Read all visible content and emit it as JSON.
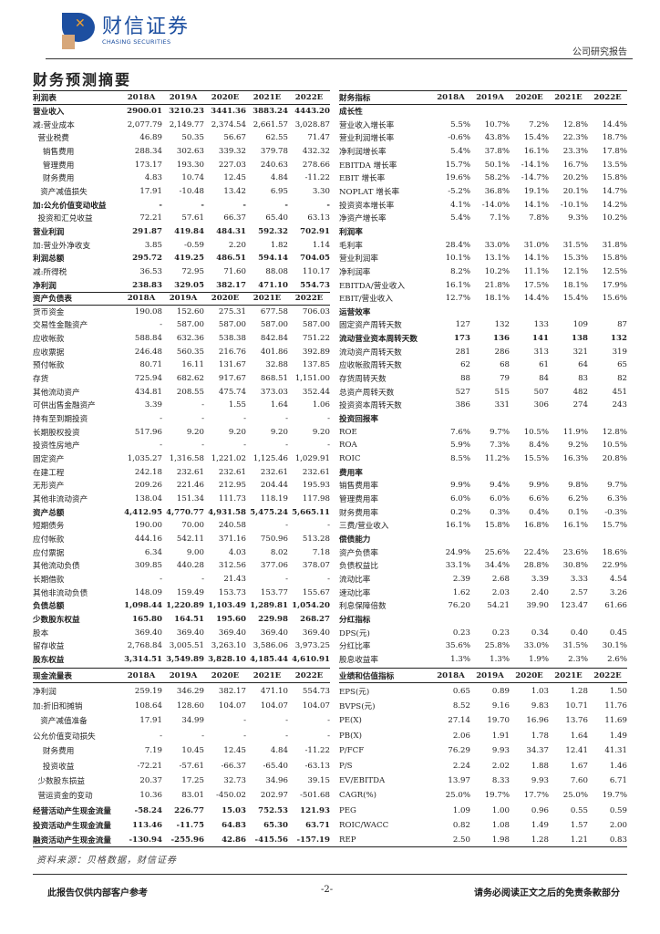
{
  "header": {
    "logo_cn": "财信证券",
    "logo_en": "CHASING SECURITIES",
    "report_type": "公司研究报告",
    "page_title": "财务预测摘要"
  },
  "years": [
    "2018A",
    "2019A",
    "2020E",
    "2021E",
    "2022E"
  ],
  "left_table": [
    {
      "type": "hd",
      "label": "利润表"
    },
    {
      "label": "营业收入",
      "b": true,
      "v": [
        "2900.01",
        "3210.23",
        "3441.36",
        "3883.24",
        "4443.20"
      ]
    },
    {
      "label": "减:营业成本",
      "v": [
        "2,077.79",
        "2,149.77",
        "2,374.54",
        "2,661.57",
        "3,028.87"
      ]
    },
    {
      "label": "  营业税费",
      "v": [
        "46.89",
        "50.35",
        "56.67",
        "62.55",
        "71.47"
      ]
    },
    {
      "label": "    销售费用",
      "v": [
        "288.34",
        "302.63",
        "339.32",
        "379.78",
        "432.32"
      ]
    },
    {
      "label": "    管理费用",
      "v": [
        "173.17",
        "193.30",
        "227.03",
        "240.63",
        "278.66"
      ]
    },
    {
      "label": "    财务费用",
      "v": [
        "4.83",
        "10.74",
        "12.45",
        "4.84",
        "-11.22"
      ]
    },
    {
      "label": "   资产减值损失",
      "v": [
        "17.91",
        "-10.48",
        "13.42",
        "6.95",
        "3.30"
      ]
    },
    {
      "label": "加:公允价值变动收益",
      "b": true,
      "v": [
        "-",
        "-",
        "-",
        "-",
        "-"
      ]
    },
    {
      "label": "  投资和汇兑收益",
      "v": [
        "72.21",
        "57.61",
        "66.37",
        "65.40",
        "63.13"
      ]
    },
    {
      "label": "营业利润",
      "b": true,
      "v": [
        "291.87",
        "419.84",
        "484.31",
        "592.32",
        "702.91"
      ]
    },
    {
      "label": "加:营业外净收支",
      "v": [
        "3.85",
        "-0.59",
        "2.20",
        "1.82",
        "1.14"
      ]
    },
    {
      "label": "利润总额",
      "b": true,
      "v": [
        "295.72",
        "419.25",
        "486.51",
        "594.14",
        "704.05"
      ]
    },
    {
      "label": "减:所得税",
      "v": [
        "36.53",
        "72.95",
        "71.60",
        "88.08",
        "110.17"
      ]
    },
    {
      "label": "净利润",
      "b": true,
      "v": [
        "238.83",
        "329.05",
        "382.17",
        "471.10",
        "554.73"
      ]
    },
    {
      "type": "hd",
      "label": "资产负债表"
    },
    {
      "label": "货币资金",
      "v": [
        "190.08",
        "152.60",
        "275.31",
        "677.58",
        "706.03"
      ]
    },
    {
      "label": "交易性金融资产",
      "v": [
        "-",
        "587.00",
        "587.00",
        "587.00",
        "587.00"
      ]
    },
    {
      "label": "应收帐款",
      "v": [
        "588.84",
        "632.36",
        "538.38",
        "842.84",
        "751.22"
      ]
    },
    {
      "label": "应收票据",
      "v": [
        "246.48",
        "560.35",
        "216.76",
        "401.86",
        "392.89"
      ]
    },
    {
      "label": "预付帐款",
      "v": [
        "80.71",
        "16.11",
        "131.67",
        "32.88",
        "137.85"
      ]
    },
    {
      "label": "存货",
      "v": [
        "725.94",
        "682.62",
        "917.67",
        "868.51",
        "1,151.00"
      ]
    },
    {
      "label": "其他流动资产",
      "v": [
        "434.81",
        "208.55",
        "475.74",
        "373.03",
        "352.44"
      ]
    },
    {
      "label": "可供出售金融资产",
      "v": [
        "3.39",
        "-",
        "1.55",
        "1.64",
        "1.06"
      ]
    },
    {
      "label": "持有至到期投资",
      "v": [
        "-",
        "-",
        "-",
        "-",
        "-"
      ]
    },
    {
      "label": "长期股权投资",
      "v": [
        "517.96",
        "9.20",
        "9.20",
        "9.20",
        "9.20"
      ]
    },
    {
      "label": "投资性房地产",
      "v": [
        "-",
        "-",
        "-",
        "-",
        "-"
      ]
    },
    {
      "label": "固定资产",
      "v": [
        "1,035.27",
        "1,316.58",
        "1,221.02",
        "1,125.46",
        "1,029.91"
      ]
    },
    {
      "label": "在建工程",
      "v": [
        "242.18",
        "232.61",
        "232.61",
        "232.61",
        "232.61"
      ]
    },
    {
      "label": "无形资产",
      "v": [
        "209.26",
        "221.46",
        "212.95",
        "204.44",
        "195.93"
      ]
    },
    {
      "label": "其他非流动资产",
      "v": [
        "138.04",
        "151.34",
        "111.73",
        "118.19",
        "117.98"
      ]
    },
    {
      "label": "资产总额",
      "b": true,
      "v": [
        "4,412.95",
        "4,770.77",
        "4,931.58",
        "5,475.24",
        "5,665.11"
      ]
    },
    {
      "label": "短期债务",
      "v": [
        "190.00",
        "70.00",
        "240.58",
        "-",
        "-"
      ]
    },
    {
      "label": "应付帐款",
      "v": [
        "444.16",
        "542.11",
        "371.16",
        "750.96",
        "513.28"
      ]
    },
    {
      "label": "应付票据",
      "v": [
        "6.34",
        "9.00",
        "4.03",
        "8.02",
        "7.18"
      ]
    },
    {
      "label": "其他流动负债",
      "v": [
        "309.85",
        "440.28",
        "312.56",
        "377.06",
        "378.07"
      ]
    },
    {
      "label": "长期借款",
      "v": [
        "-",
        "-",
        "21.43",
        "-",
        "-"
      ]
    },
    {
      "label": "其他非流动负债",
      "v": [
        "148.09",
        "159.49",
        "153.73",
        "153.77",
        "155.67"
      ]
    },
    {
      "label": "负债总额",
      "b": true,
      "v": [
        "1,098.44",
        "1,220.89",
        "1,103.49",
        "1,289.81",
        "1,054.20"
      ]
    },
    {
      "label": "少数股东权益",
      "b": true,
      "v": [
        "165.80",
        "164.51",
        "195.60",
        "229.98",
        "268.27"
      ]
    },
    {
      "label": "股本",
      "v": [
        "369.40",
        "369.40",
        "369.40",
        "369.40",
        "369.40"
      ]
    },
    {
      "label": "留存收益",
      "v": [
        "2,768.84",
        "3,005.51",
        "3,263.10",
        "3,586.06",
        "3,973.25"
      ]
    },
    {
      "label": "股东权益",
      "b": true,
      "v": [
        "3,314.51",
        "3,549.89",
        "3,828.10",
        "4,185.44",
        "4,610.91"
      ]
    }
  ],
  "left_table2": [
    {
      "type": "hd",
      "label": "现金流量表"
    },
    {
      "label": "净利润",
      "v": [
        "259.19",
        "346.29",
        "382.17",
        "471.10",
        "554.73"
      ]
    },
    {
      "label": "加:折旧和摊销",
      "v": [
        "108.64",
        "128.60",
        "104.07",
        "104.07",
        "104.07"
      ]
    },
    {
      "label": "   资产减值准备",
      "v": [
        "17.91",
        "34.99",
        "-",
        "-",
        "-"
      ]
    },
    {
      "label": "公允价值变动损失",
      "v": [
        "-",
        "-",
        "-",
        "-",
        "-"
      ]
    },
    {
      "label": "    财务费用",
      "v": [
        "7.19",
        "10.45",
        "12.45",
        "4.84",
        "-11.22"
      ]
    },
    {
      "label": "    投资收益",
      "v": [
        "-72.21",
        "-57.61",
        "-66.37",
        "-65.40",
        "-63.13"
      ]
    },
    {
      "label": "  少数股东损益",
      "v": [
        "20.37",
        "17.25",
        "32.73",
        "34.96",
        "39.15"
      ]
    },
    {
      "label": "  营运资金的变动",
      "v": [
        "10.36",
        "83.01",
        "-450.02",
        "202.97",
        "-501.68"
      ]
    },
    {
      "label": "经营活动产生现金流量",
      "b": true,
      "v": [
        "-58.24",
        "226.77",
        "15.03",
        "752.53",
        "121.93"
      ]
    },
    {
      "label": "投资活动产生现金流量",
      "b": true,
      "v": [
        "113.46",
        "-11.75",
        "64.83",
        "65.30",
        "63.71"
      ]
    },
    {
      "label": "融资活动产生现金流量",
      "b": true,
      "v": [
        "-130.94",
        "-255.96",
        "42.86",
        "-415.56",
        "-157.19"
      ]
    }
  ],
  "right_table": [
    {
      "type": "hd",
      "label": "财务指标"
    },
    {
      "label": "成长性",
      "b": true,
      "v": []
    },
    {
      "label": "营业收入增长率",
      "v": [
        "5.5%",
        "10.7%",
        "7.2%",
        "12.8%",
        "14.4%"
      ]
    },
    {
      "label": "营业利润增长率",
      "v": [
        "-0.6%",
        "43.8%",
        "15.4%",
        "22.3%",
        "18.7%"
      ]
    },
    {
      "label": "净利润增长率",
      "v": [
        "5.4%",
        "37.8%",
        "16.1%",
        "23.3%",
        "17.8%"
      ]
    },
    {
      "label": "EBITDA 增长率",
      "v": [
        "15.7%",
        "50.1%",
        "-14.1%",
        "16.7%",
        "13.5%"
      ]
    },
    {
      "label": "EBIT 增长率",
      "v": [
        "19.6%",
        "58.2%",
        "-14.7%",
        "20.2%",
        "15.8%"
      ]
    },
    {
      "label": "NOPLAT 增长率",
      "v": [
        "-5.2%",
        "36.8%",
        "19.1%",
        "20.1%",
        "14.7%"
      ]
    },
    {
      "label": "投资资本增长率",
      "v": [
        "4.1%",
        "-14.0%",
        "14.1%",
        "-10.1%",
        "14.2%"
      ]
    },
    {
      "label": "净资产增长率",
      "v": [
        "5.4%",
        "7.1%",
        "7.8%",
        "9.3%",
        "10.2%"
      ]
    },
    {
      "label": "利润率",
      "b": true,
      "v": []
    },
    {
      "label": "毛利率",
      "v": [
        "28.4%",
        "33.0%",
        "31.0%",
        "31.5%",
        "31.8%"
      ]
    },
    {
      "label": "营业利润率",
      "v": [
        "10.1%",
        "13.1%",
        "14.1%",
        "15.3%",
        "15.8%"
      ]
    },
    {
      "label": "净利润率",
      "v": [
        "8.2%",
        "10.2%",
        "11.1%",
        "12.1%",
        "12.5%"
      ]
    },
    {
      "label": "EBITDA/营业收入",
      "v": [
        "16.1%",
        "21.8%",
        "17.5%",
        "18.1%",
        "17.9%"
      ]
    },
    {
      "label": "EBIT/营业收入",
      "v": [
        "12.7%",
        "18.1%",
        "14.4%",
        "15.4%",
        "15.6%"
      ]
    },
    {
      "label": "运营效率",
      "b": true,
      "v": []
    },
    {
      "label": "固定资产周转天数",
      "v": [
        "127",
        "132",
        "133",
        "109",
        "87"
      ]
    },
    {
      "label": "流动营业资本周转天数",
      "b": true,
      "v": [
        "173",
        "136",
        "141",
        "138",
        "132"
      ]
    },
    {
      "label": "流动资产周转天数",
      "v": [
        "281",
        "286",
        "313",
        "321",
        "319"
      ]
    },
    {
      "label": "应收帐款周转天数",
      "v": [
        "62",
        "68",
        "61",
        "64",
        "65"
      ]
    },
    {
      "label": "存货周转天数",
      "v": [
        "88",
        "79",
        "84",
        "83",
        "82"
      ]
    },
    {
      "label": "总资产周转天数",
      "v": [
        "527",
        "515",
        "507",
        "482",
        "451"
      ]
    },
    {
      "label": "投资资本周转天数",
      "v": [
        "386",
        "331",
        "306",
        "274",
        "243"
      ]
    },
    {
      "label": "投资回报率",
      "b": true,
      "v": []
    },
    {
      "label": "ROE",
      "v": [
        "7.6%",
        "9.7%",
        "10.5%",
        "11.9%",
        "12.8%"
      ]
    },
    {
      "label": "ROA",
      "v": [
        "5.9%",
        "7.3%",
        "8.4%",
        "9.2%",
        "10.5%"
      ]
    },
    {
      "label": "ROIC",
      "v": [
        "8.5%",
        "11.2%",
        "15.5%",
        "16.3%",
        "20.8%"
      ]
    },
    {
      "label": "费用率",
      "b": true,
      "v": []
    },
    {
      "label": "销售费用率",
      "v": [
        "9.9%",
        "9.4%",
        "9.9%",
        "9.8%",
        "9.7%"
      ]
    },
    {
      "label": "管理费用率",
      "v": [
        "6.0%",
        "6.0%",
        "6.6%",
        "6.2%",
        "6.3%"
      ]
    },
    {
      "label": "财务费用率",
      "v": [
        "0.2%",
        "0.3%",
        "0.4%",
        "0.1%",
        "-0.3%"
      ]
    },
    {
      "label": "三费/营业收入",
      "v": [
        "16.1%",
        "15.8%",
        "16.8%",
        "16.1%",
        "15.7%"
      ]
    },
    {
      "label": "偿债能力",
      "b": true,
      "v": []
    },
    {
      "label": "资产负债率",
      "v": [
        "24.9%",
        "25.6%",
        "22.4%",
        "23.6%",
        "18.6%"
      ]
    },
    {
      "label": "负债权益比",
      "v": [
        "33.1%",
        "34.4%",
        "28.8%",
        "30.8%",
        "22.9%"
      ]
    },
    {
      "label": "流动比率",
      "v": [
        "2.39",
        "2.68",
        "3.39",
        "3.33",
        "4.54"
      ]
    },
    {
      "label": "速动比率",
      "v": [
        "1.62",
        "2.03",
        "2.40",
        "2.57",
        "3.26"
      ]
    },
    {
      "label": "利息保障倍数",
      "v": [
        "76.20",
        "54.21",
        "39.90",
        "123.47",
        "61.66"
      ]
    },
    {
      "label": "分红指标",
      "b": true,
      "v": []
    },
    {
      "label": "DPS(元)",
      "v": [
        "0.23",
        "0.23",
        "0.34",
        "0.40",
        "0.45"
      ]
    },
    {
      "label": "分红比率",
      "v": [
        "35.6%",
        "25.8%",
        "33.0%",
        "31.5%",
        "30.1%"
      ]
    },
    {
      "label": "股息收益率",
      "v": [
        "1.3%",
        "1.3%",
        "1.9%",
        "2.3%",
        "2.6%"
      ]
    }
  ],
  "right_table2": [
    {
      "type": "hd",
      "label": "业绩和估值指标"
    },
    {
      "label": "EPS(元)",
      "v": [
        "0.65",
        "0.89",
        "1.03",
        "1.28",
        "1.50"
      ]
    },
    {
      "label": "BVPS(元)",
      "v": [
        "8.52",
        "9.16",
        "9.83",
        "10.71",
        "11.76"
      ]
    },
    {
      "label": "PE(X)",
      "v": [
        "27.14",
        "19.70",
        "16.96",
        "13.76",
        "11.69"
      ]
    },
    {
      "label": "PB(X)",
      "v": [
        "2.06",
        "1.91",
        "1.78",
        "1.64",
        "1.49"
      ]
    },
    {
      "label": "P/FCF",
      "v": [
        "76.29",
        "9.93",
        "34.37",
        "12.41",
        "41.31"
      ]
    },
    {
      "label": "P/S",
      "v": [
        "2.24",
        "2.02",
        "1.88",
        "1.67",
        "1.46"
      ]
    },
    {
      "label": "EV/EBITDA",
      "v": [
        "13.97",
        "8.33",
        "9.93",
        "7.60",
        "6.71"
      ]
    },
    {
      "label": "CAGR(%)",
      "v": [
        "25.0%",
        "19.7%",
        "17.7%",
        "25.0%",
        "19.7%"
      ]
    },
    {
      "label": "PEG",
      "v": [
        "1.09",
        "1.00",
        "0.96",
        "0.55",
        "0.59"
      ]
    },
    {
      "label": "ROIC/WACC",
      "v": [
        "0.82",
        "1.08",
        "1.49",
        "1.57",
        "2.00"
      ]
    },
    {
      "label": "REP",
      "v": [
        "2.50",
        "1.98",
        "1.28",
        "1.21",
        "0.83"
      ]
    }
  ],
  "source": "资料来源：贝格数据，财信证券",
  "footer": {
    "left": "此报告仅供内部客户参考",
    "page": "-2-",
    "right": "请务必阅读正文之后的免责条款部分"
  }
}
